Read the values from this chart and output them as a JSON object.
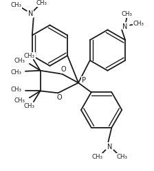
{
  "bg_color": "#ffffff",
  "line_color": "#1a1a1a",
  "lw": 1.3,
  "lw_thin": 1.0,
  "figsize": [
    2.24,
    2.49
  ],
  "dpi": 100,
  "xlim": [
    0,
    224
  ],
  "ylim": [
    0,
    249
  ]
}
